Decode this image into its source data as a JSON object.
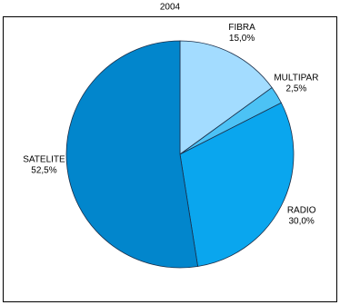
{
  "chart_data": {
    "type": "pie",
    "title": "2004",
    "categories": [
      "FIBRA",
      "MULTIPAR",
      "RADIO",
      "SATELITE"
    ],
    "values": [
      15.0,
      2.5,
      30.0,
      52.5
    ],
    "value_labels": [
      "15,0%",
      "2,5%",
      "30,0%",
      "52,5%"
    ],
    "colors": [
      "#a3dcff",
      "#4cc2f5",
      "#0aa6ee",
      "#0286cc"
    ]
  }
}
